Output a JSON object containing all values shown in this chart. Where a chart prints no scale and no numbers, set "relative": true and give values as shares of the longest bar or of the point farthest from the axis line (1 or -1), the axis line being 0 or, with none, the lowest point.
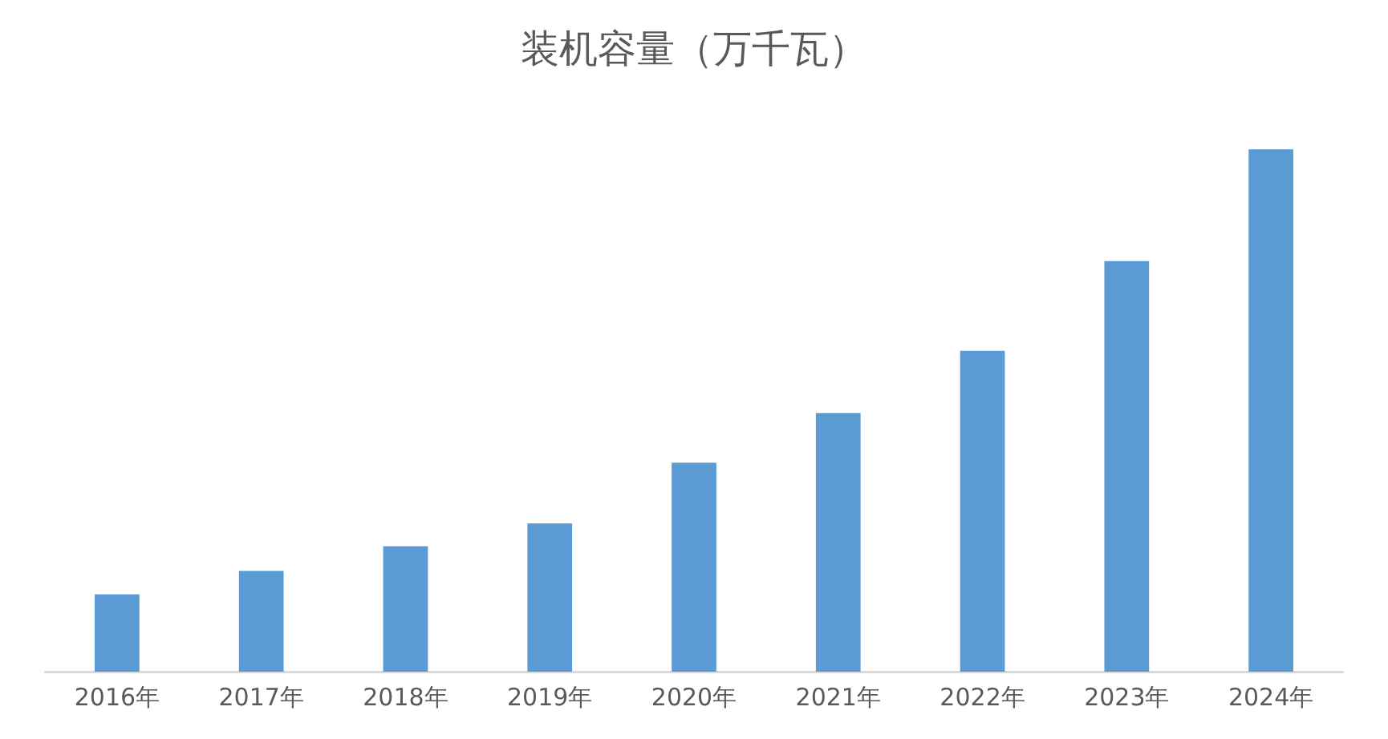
{
  "chart_data": {
    "type": "bar",
    "title": "装机容量（万千瓦）",
    "categories": [
      "2016年",
      "2017年",
      "2018年",
      "2019年",
      "2020年",
      "2021年",
      "2022年",
      "2023年",
      "2024年"
    ],
    "values": [
      0.148,
      0.193,
      0.24,
      0.284,
      0.4,
      0.495,
      0.614,
      0.786,
      1
    ],
    "color": "#5b9bd5",
    "relative": true
  }
}
